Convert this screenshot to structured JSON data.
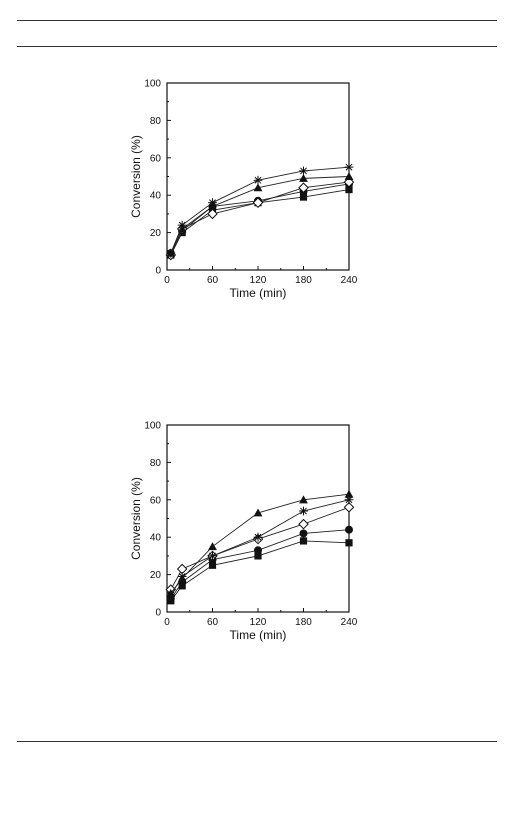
{
  "chart_data": [
    {
      "type": "line",
      "xlabel": "Time (min)",
      "ylabel": "Conversion (%)",
      "xlim": [
        0,
        240
      ],
      "ylim": [
        0,
        100
      ],
      "xticks": [
        0,
        60,
        120,
        180,
        240
      ],
      "yticks": [
        0,
        20,
        40,
        60,
        80,
        100
      ],
      "grid": false,
      "x": [
        5,
        20,
        60,
        120,
        180,
        240
      ],
      "series": [
        {
          "marker": "square-filled",
          "values": [
            8,
            20,
            32,
            36,
            39,
            43
          ]
        },
        {
          "marker": "circle-filled",
          "values": [
            9,
            21,
            34,
            37,
            42,
            46
          ]
        },
        {
          "marker": "diamond-open",
          "values": [
            8,
            22,
            30,
            36,
            44,
            47
          ]
        },
        {
          "marker": "triangle-filled",
          "values": [
            9,
            22,
            34,
            44,
            49,
            50
          ]
        },
        {
          "marker": "asterisk",
          "values": [
            9,
            24,
            36,
            48,
            53,
            55
          ]
        }
      ]
    },
    {
      "type": "line",
      "xlabel": "Time (min)",
      "ylabel": "Conversion (%)",
      "xlim": [
        0,
        240
      ],
      "ylim": [
        0,
        100
      ],
      "xticks": [
        0,
        60,
        120,
        180,
        240
      ],
      "yticks": [
        0,
        20,
        40,
        60,
        80,
        100
      ],
      "grid": false,
      "x": [
        5,
        20,
        60,
        120,
        180,
        240
      ],
      "series": [
        {
          "marker": "square-filled",
          "values": [
            6,
            14,
            25,
            30,
            38,
            37
          ]
        },
        {
          "marker": "circle-filled",
          "values": [
            7,
            16,
            28,
            33,
            42,
            44
          ]
        },
        {
          "marker": "diamond-open",
          "values": [
            12,
            23,
            30,
            39,
            47,
            56
          ]
        },
        {
          "marker": "triangle-filled",
          "values": [
            10,
            18,
            35,
            53,
            60,
            63
          ]
        },
        {
          "marker": "asterisk",
          "values": [
            9,
            19,
            30,
            40,
            54,
            60
          ]
        }
      ]
    }
  ]
}
